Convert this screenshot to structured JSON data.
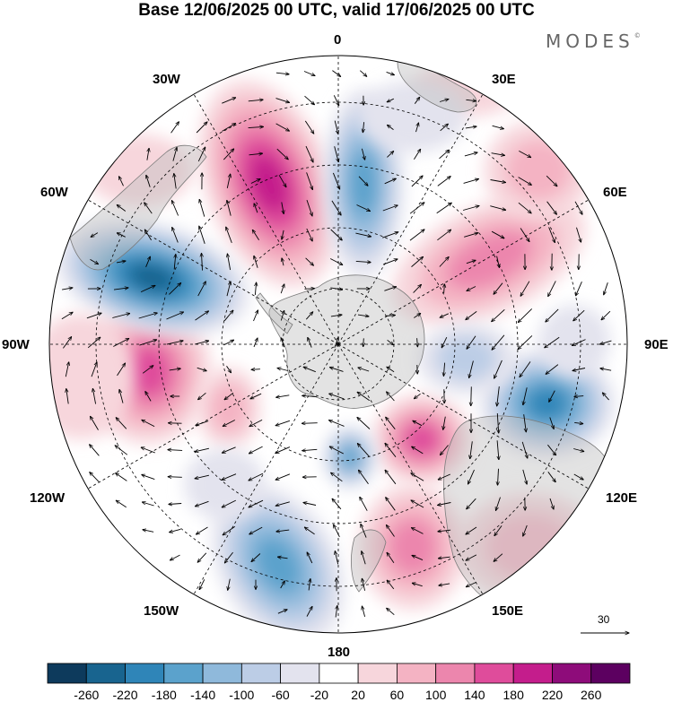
{
  "title": "Base 12/06/2025 00 UTC, valid 17/06/2025 00 UTC",
  "brand": "MODES",
  "brand_mark": "©",
  "longitude_labels": {
    "lon_0": "0",
    "lon_30e": "30E",
    "lon_60e": "60E",
    "lon_90e": "90E",
    "lon_120e": "120E",
    "lon_150e": "150E",
    "lon_180": "180",
    "lon_150w": "150W",
    "lon_120w": "120W",
    "lon_90w": "90W",
    "lon_60w": "60W",
    "lon_30w": "30W"
  },
  "vector_scale": {
    "label": "30"
  },
  "colorbar": {
    "labels": [
      "-260",
      "-220",
      "-180",
      "-140",
      "-100",
      "-60",
      "-20",
      "20",
      "60",
      "100",
      "140",
      "180",
      "220",
      "260"
    ],
    "colors": [
      "#0d3a5c",
      "#18648f",
      "#2f85b8",
      "#5ba2cc",
      "#8fb9db",
      "#bccde6",
      "#e3e3ee",
      "#ffffff",
      "#f7d6dc",
      "#f4b3c3",
      "#ec86ad",
      "#df4c9b",
      "#c41d8c",
      "#8e0c7a",
      "#5c0060"
    ]
  },
  "chart_data": {
    "type": "heatmap",
    "projection": "south polar stereographic",
    "field": "geopotential height anomaly with wind vectors",
    "anomaly_centers": [
      {
        "region": "South Atlantic 20W",
        "sign": "positive",
        "max": 240
      },
      {
        "region": "South Atlantic 5E",
        "sign": "negative",
        "min": -180
      },
      {
        "region": "Southern Indian Ocean 50E",
        "sign": "positive",
        "max": 140
      },
      {
        "region": "Southern Indian Ocean 110E",
        "sign": "negative",
        "min": -180
      },
      {
        "region": "South of Australia 150E",
        "sign": "positive",
        "max": 160
      },
      {
        "region": "South Pacific 165W",
        "sign": "negative",
        "min": -160
      },
      {
        "region": "South Pacific 95W",
        "sign": "positive",
        "max": 180
      },
      {
        "region": "South Pacific 65W",
        "sign": "negative",
        "min": -200
      }
    ]
  }
}
